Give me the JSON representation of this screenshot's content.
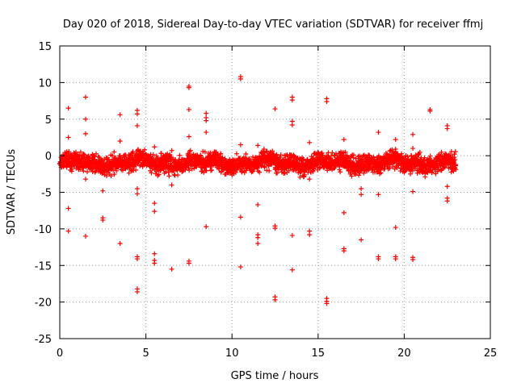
{
  "chart_data": {
    "type": "scatter",
    "title": "Day 020 of 2018, Sidereal Day-to-day VTEC variation (SDTVAR) for receiver ffmj",
    "xlabel": "GPS time / hours",
    "ylabel": "SDTVAR / TECUs",
    "xlim": [
      0,
      25
    ],
    "ylim": [
      -25,
      15
    ],
    "xticks": [
      "0",
      "5",
      "10",
      "15",
      "20",
      "25"
    ],
    "yticks": [
      "15",
      "10",
      "5",
      "0",
      "-5",
      "-10",
      "-15",
      "-20",
      "-25"
    ],
    "grid": true,
    "marker": "plus",
    "color": "#ff0000",
    "series": [
      {
        "name": "SDTVAR",
        "x_range": [
          0,
          23
        ],
        "approx_y": [
          -2.5,
          1.0
        ],
        "outliers": [
          [
            0.5,
            6.5
          ],
          [
            0.5,
            2.5
          ],
          [
            0.5,
            -7.2
          ],
          [
            0.5,
            -10.3
          ],
          [
            1.5,
            8.0
          ],
          [
            1.5,
            5.0
          ],
          [
            1.5,
            3.0
          ],
          [
            1.5,
            -3.2
          ],
          [
            1.5,
            -11.0
          ],
          [
            2.5,
            -4.8
          ],
          [
            2.5,
            -8.5
          ],
          [
            2.5,
            -8.8
          ],
          [
            3.5,
            5.6
          ],
          [
            3.5,
            2.0
          ],
          [
            3.5,
            -12.0
          ],
          [
            4.5,
            6.2
          ],
          [
            4.5,
            5.7
          ],
          [
            4.5,
            4.1
          ],
          [
            4.5,
            -4.5
          ],
          [
            4.5,
            -5.2
          ],
          [
            4.5,
            -13.8
          ],
          [
            4.5,
            -14.1
          ],
          [
            4.5,
            -18.2
          ],
          [
            4.5,
            -18.6
          ],
          [
            5.5,
            1.2
          ],
          [
            5.5,
            -6.5
          ],
          [
            5.5,
            -7.6
          ],
          [
            5.5,
            -13.4
          ],
          [
            5.5,
            -14.3
          ],
          [
            5.5,
            -14.7
          ],
          [
            6.5,
            0.7
          ],
          [
            6.5,
            -4.0
          ],
          [
            6.5,
            -15.5
          ],
          [
            7.5,
            9.5
          ],
          [
            7.5,
            9.3
          ],
          [
            7.5,
            6.3
          ],
          [
            7.5,
            2.6
          ],
          [
            7.5,
            -14.4
          ],
          [
            7.5,
            -14.7
          ],
          [
            8.5,
            5.8
          ],
          [
            8.5,
            5.2
          ],
          [
            8.5,
            4.8
          ],
          [
            8.5,
            3.2
          ],
          [
            8.5,
            -9.7
          ],
          [
            10.5,
            10.8
          ],
          [
            10.5,
            10.5
          ],
          [
            10.5,
            1.5
          ],
          [
            10.5,
            -8.4
          ],
          [
            10.5,
            -15.2
          ],
          [
            11.5,
            1.4
          ],
          [
            11.5,
            -6.7
          ],
          [
            11.5,
            -10.8
          ],
          [
            11.5,
            -11.2
          ],
          [
            11.5,
            -12.0
          ],
          [
            12.5,
            6.4
          ],
          [
            12.5,
            -9.6
          ],
          [
            12.5,
            -9.9
          ],
          [
            12.5,
            -19.3
          ],
          [
            12.5,
            -19.7
          ],
          [
            13.5,
            8.0
          ],
          [
            13.5,
            7.6
          ],
          [
            13.5,
            4.7
          ],
          [
            13.5,
            4.2
          ],
          [
            13.5,
            -10.9
          ],
          [
            13.5,
            -15.6
          ],
          [
            14.5,
            1.8
          ],
          [
            14.5,
            -3.2
          ],
          [
            14.5,
            -10.3
          ],
          [
            14.5,
            -10.8
          ],
          [
            15.5,
            7.8
          ],
          [
            15.5,
            7.4
          ],
          [
            15.5,
            -19.5
          ],
          [
            15.5,
            -19.9
          ],
          [
            15.5,
            -20.2
          ],
          [
            16.5,
            2.2
          ],
          [
            16.5,
            -7.8
          ],
          [
            16.5,
            -12.7
          ],
          [
            16.5,
            -13.0
          ],
          [
            17.5,
            -4.5
          ],
          [
            17.5,
            -5.3
          ],
          [
            17.5,
            -11.5
          ],
          [
            18.5,
            3.2
          ],
          [
            18.5,
            -5.3
          ],
          [
            18.5,
            -13.8
          ],
          [
            18.5,
            -14.1
          ],
          [
            19.5,
            2.2
          ],
          [
            19.5,
            0.9
          ],
          [
            19.5,
            -9.8
          ],
          [
            19.5,
            -13.8
          ],
          [
            19.5,
            -14.1
          ],
          [
            20.5,
            2.9
          ],
          [
            20.5,
            1.0
          ],
          [
            20.5,
            -4.9
          ],
          [
            20.5,
            -13.9
          ],
          [
            20.5,
            -14.2
          ],
          [
            21.5,
            6.3
          ],
          [
            21.5,
            6.1
          ],
          [
            22.5,
            4.1
          ],
          [
            22.5,
            3.7
          ],
          [
            22.5,
            -4.2
          ],
          [
            22.5,
            -5.8
          ],
          [
            22.5,
            -6.2
          ]
        ]
      }
    ]
  }
}
